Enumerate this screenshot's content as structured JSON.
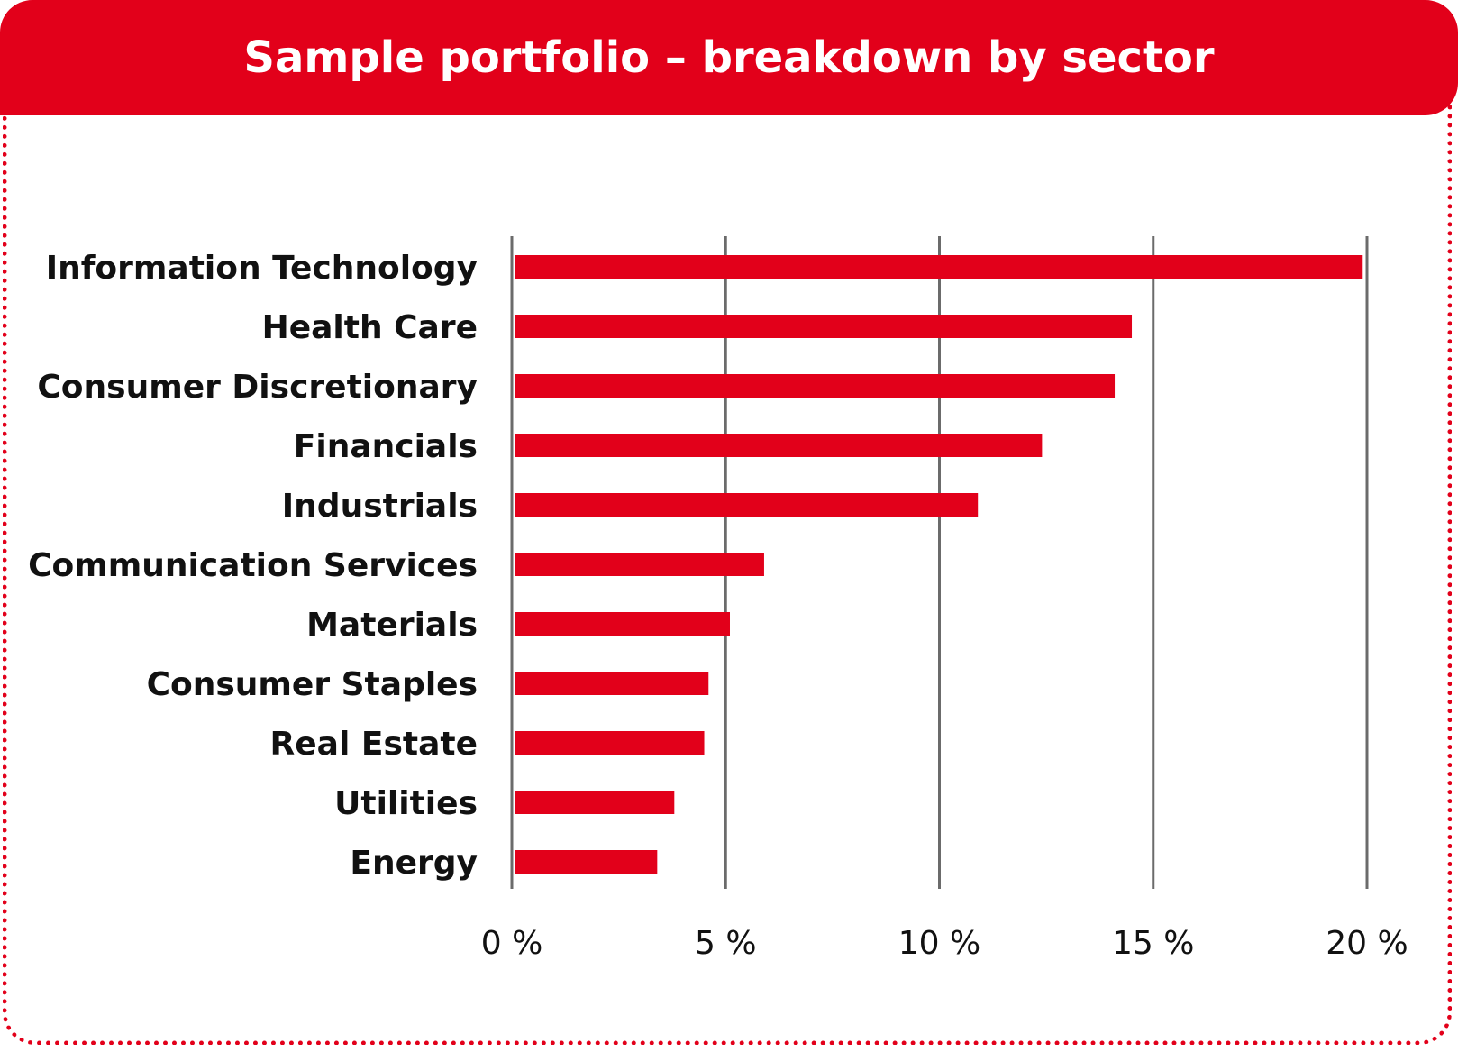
{
  "colors": {
    "accent": "#e2001a",
    "grid": "#6b6b6b",
    "text": "#111111"
  },
  "chart_data": {
    "type": "bar",
    "orientation": "horizontal",
    "title": "Sample portfolio – breakdown by sector",
    "categories": [
      "Information Technology",
      "Health Care",
      "Consumer Discretionary",
      "Financials",
      "Industrials",
      "Communication Services",
      "Materials",
      "Consumer Staples",
      "Real Estate",
      "Utilities",
      "Energy"
    ],
    "values": [
      19.9,
      14.5,
      14.1,
      12.4,
      10.9,
      5.9,
      5.1,
      4.6,
      4.5,
      3.8,
      3.4
    ],
    "xlim": [
      0,
      20
    ],
    "xticks": [
      0,
      5,
      10,
      15,
      20
    ],
    "xtick_labels": [
      "0 %",
      "5 %",
      "10 %",
      "15 %",
      "20 %"
    ],
    "grid": true,
    "legend": "none"
  }
}
